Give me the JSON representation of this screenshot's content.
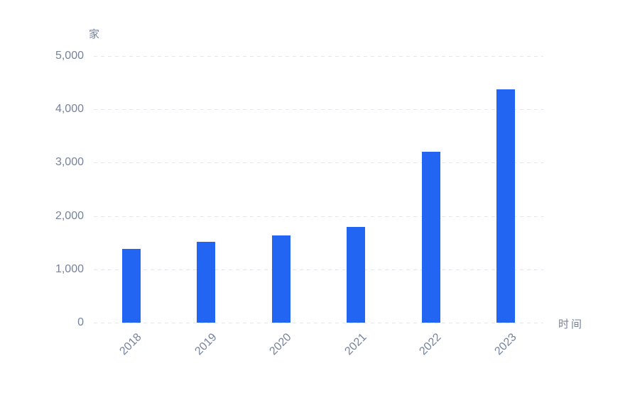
{
  "chart_data": {
    "type": "bar",
    "categories": [
      "2018",
      "2019",
      "2020",
      "2021",
      "2022",
      "2023"
    ],
    "values": [
      1380,
      1510,
      1630,
      1790,
      3200,
      4380
    ],
    "ylabel": "家",
    "xlabel": "时间",
    "ylim": [
      0,
      5000
    ],
    "yticks": [
      {
        "value": 0,
        "label": "0"
      },
      {
        "value": 1000,
        "label": "1,000"
      },
      {
        "value": 2000,
        "label": "2,000"
      },
      {
        "value": 3000,
        "label": "3,000"
      },
      {
        "value": 4000,
        "label": "4,000"
      },
      {
        "value": 5000,
        "label": "5,000"
      }
    ],
    "grid": true,
    "grid_style": "dashed",
    "legend_position": "none",
    "bar_color": "#2165F2",
    "grid_color": "#E3E6EC",
    "text_color": "#76839B",
    "background_color": "#FFFFFF"
  }
}
